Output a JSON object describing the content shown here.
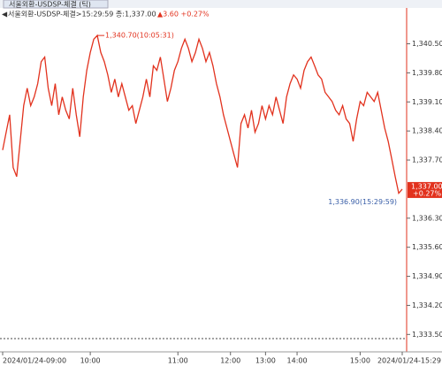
{
  "header": {
    "tab": "서울외환-USDSP-체결 (틱)",
    "info": "서울외환-USDSP-체결>15:29:59 종:1,337.00",
    "change": "▲3.60 +0.27%"
  },
  "chart_data": {
    "type": "line",
    "series": [
      {
        "color": "#e2321e",
        "values": [
          1337.94,
          1338.37,
          1338.79,
          1337.52,
          1337.3,
          1338.15,
          1339.01,
          1339.43,
          1339.01,
          1339.22,
          1339.54,
          1340.07,
          1340.18,
          1339.43,
          1339.01,
          1339.54,
          1338.79,
          1339.22,
          1338.9,
          1338.69,
          1339.43,
          1338.79,
          1338.26,
          1339.22,
          1339.86,
          1340.29,
          1340.61,
          1340.7,
          1340.29,
          1340.07,
          1339.75,
          1339.33,
          1339.65,
          1339.22,
          1339.54,
          1339.22,
          1338.9,
          1339.01,
          1338.58,
          1338.9,
          1339.22,
          1339.65,
          1339.22,
          1339.97,
          1339.86,
          1340.18,
          1339.65,
          1339.11,
          1339.43,
          1339.86,
          1340.07,
          1340.39,
          1340.61,
          1340.39,
          1340.07,
          1340.29,
          1340.61,
          1340.39,
          1340.07,
          1340.29,
          1339.97,
          1339.54,
          1339.22,
          1338.79,
          1338.47,
          1338.15,
          1337.83,
          1337.52,
          1338.58,
          1338.79,
          1338.47,
          1338.9,
          1338.37,
          1338.58,
          1339.01,
          1338.69,
          1339.01,
          1338.79,
          1339.22,
          1338.9,
          1338.58,
          1339.22,
          1339.54,
          1339.75,
          1339.65,
          1339.43,
          1339.86,
          1340.07,
          1340.18,
          1339.97,
          1339.75,
          1339.65,
          1339.33,
          1339.22,
          1339.11,
          1338.9,
          1338.79,
          1339.01,
          1338.69,
          1338.58,
          1338.15,
          1338.69,
          1339.11,
          1339.01,
          1339.33,
          1339.22,
          1339.11,
          1339.33,
          1338.9,
          1338.47,
          1338.15,
          1337.73,
          1337.3,
          1336.9,
          1337.0
        ]
      }
    ],
    "xlim": [
      0,
      114
    ],
    "xticks": [
      {
        "value": 0,
        "label": "2024/01/24-09:00"
      },
      {
        "value": 25,
        "label": "10:00"
      },
      {
        "value": 50,
        "label": "11:00"
      },
      {
        "value": 65,
        "label": "12:00"
      },
      {
        "value": 75,
        "label": "13:00"
      },
      {
        "value": 84,
        "label": "14:00"
      },
      {
        "value": 102,
        "label": "15:00"
      },
      {
        "value": 114,
        "label": "2024/01/24-15:29"
      }
    ],
    "ylim": [
      1333.4,
      1341.15
    ],
    "yticks": [
      {
        "value": 1340.5,
        "label": "1,340.50"
      },
      {
        "value": 1339.8,
        "label": "1,339.80"
      },
      {
        "value": 1339.1,
        "label": "1,339.10"
      },
      {
        "value": 1338.4,
        "label": "1,338.40"
      },
      {
        "value": 1337.7,
        "label": "1,337.70"
      },
      {
        "value": 1336.3,
        "label": "1,336.30"
      },
      {
        "value": 1335.6,
        "label": "1,335.60"
      },
      {
        "value": 1334.9,
        "label": "1,334.90"
      },
      {
        "value": 1334.2,
        "label": "1,334.20"
      },
      {
        "value": 1333.5,
        "label": "1,333.50"
      }
    ],
    "high_label": "1,340.70(10:05:31)",
    "low_label": "1,336.90(15:29:59)",
    "last": {
      "value": 1337.0,
      "label": "1,337.00",
      "change": "+0.27%"
    }
  }
}
